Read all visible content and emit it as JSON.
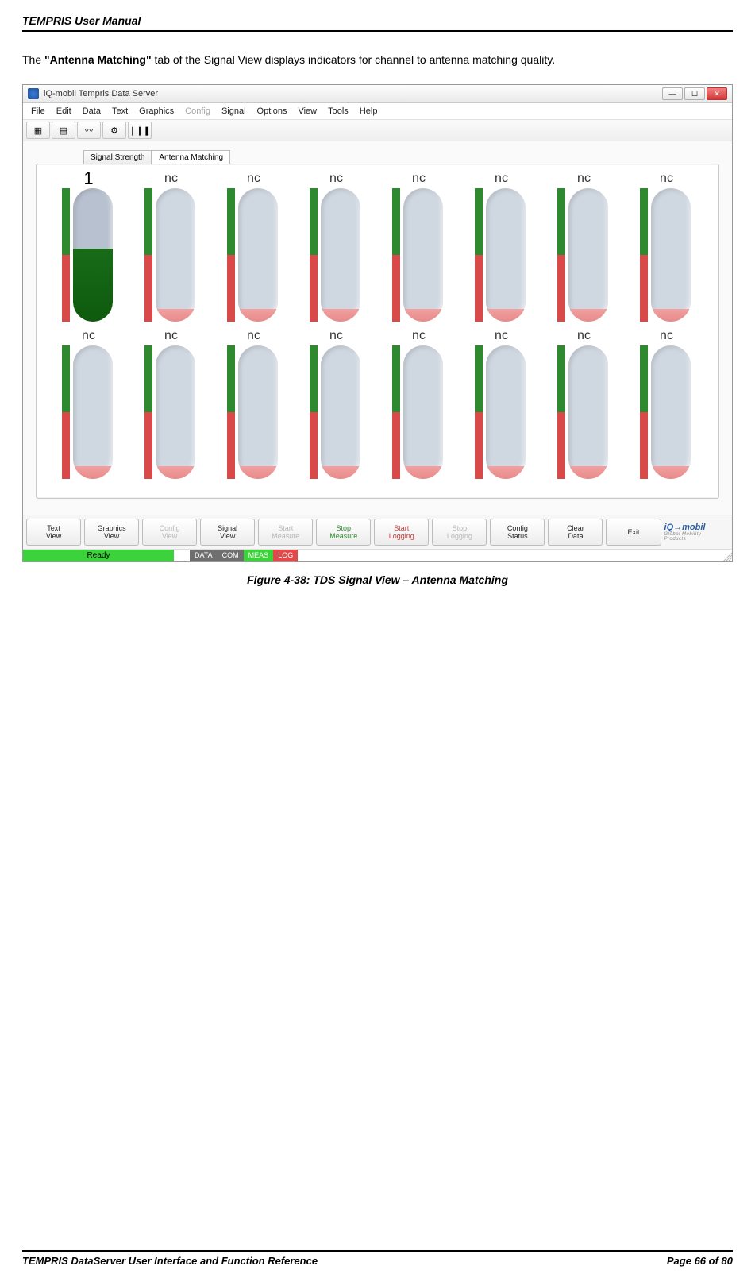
{
  "doc": {
    "header": "TEMPRIS User Manual",
    "footer_left": "TEMPRIS DataServer User Interface and Function Reference",
    "footer_right": "Page 66 of 80",
    "paragraph_pre": "The ",
    "paragraph_tab": "\"Antenna Matching\"",
    "paragraph_post": " tab of the Signal View displays indicators for channel to antenna matching quality.",
    "caption": "Figure 4-38: TDS Signal View – Antenna Matching"
  },
  "window": {
    "title": "iQ-mobil Tempris Data Server",
    "menus": [
      {
        "label": "File",
        "enabled": true
      },
      {
        "label": "Edit",
        "enabled": true
      },
      {
        "label": "Data",
        "enabled": true
      },
      {
        "label": "Text",
        "enabled": true
      },
      {
        "label": "Graphics",
        "enabled": true
      },
      {
        "label": "Config",
        "enabled": false
      },
      {
        "label": "Signal",
        "enabled": true
      },
      {
        "label": "Options",
        "enabled": true
      },
      {
        "label": "View",
        "enabled": true
      },
      {
        "label": "Tools",
        "enabled": true
      },
      {
        "label": "Help",
        "enabled": true
      }
    ],
    "toolbar_icons": [
      "▦",
      "▤",
      "〰",
      "⚙",
      "❘❙❚"
    ],
    "subtabs": [
      {
        "label": "Signal Strength",
        "active": false
      },
      {
        "label": "Antenna Matching",
        "active": true
      }
    ],
    "gauges": {
      "scale_colors_top_to_bottom": [
        "#2f8a2f",
        "#2f8a2f",
        "#2f8a2f",
        "#2f8a2f",
        "#2f8a2f",
        "#d84a4a",
        "#d84a4a",
        "#d84a4a",
        "#d84a4a",
        "#d84a4a"
      ],
      "tube_bg_active": "#b8c1cf",
      "tube_bg_inactive": "#cfd7e1",
      "channels": [
        {
          "label": "1",
          "is_ch1": true,
          "fill_pct": 55,
          "active": true
        },
        {
          "label": "nc",
          "is_ch1": false,
          "fill_pct": 10,
          "active": false
        },
        {
          "label": "nc",
          "is_ch1": false,
          "fill_pct": 10,
          "active": false
        },
        {
          "label": "nc",
          "is_ch1": false,
          "fill_pct": 10,
          "active": false
        },
        {
          "label": "nc",
          "is_ch1": false,
          "fill_pct": 10,
          "active": false
        },
        {
          "label": "nc",
          "is_ch1": false,
          "fill_pct": 10,
          "active": false
        },
        {
          "label": "nc",
          "is_ch1": false,
          "fill_pct": 10,
          "active": false
        },
        {
          "label": "nc",
          "is_ch1": false,
          "fill_pct": 10,
          "active": false
        },
        {
          "label": "nc",
          "is_ch1": false,
          "fill_pct": 10,
          "active": false
        },
        {
          "label": "nc",
          "is_ch1": false,
          "fill_pct": 10,
          "active": false
        },
        {
          "label": "nc",
          "is_ch1": false,
          "fill_pct": 10,
          "active": false
        },
        {
          "label": "nc",
          "is_ch1": false,
          "fill_pct": 10,
          "active": false
        },
        {
          "label": "nc",
          "is_ch1": false,
          "fill_pct": 10,
          "active": false
        },
        {
          "label": "nc",
          "is_ch1": false,
          "fill_pct": 10,
          "active": false
        },
        {
          "label": "nc",
          "is_ch1": false,
          "fill_pct": 10,
          "active": false
        },
        {
          "label": "nc",
          "is_ch1": false,
          "fill_pct": 10,
          "active": false
        }
      ]
    },
    "bottom_buttons": [
      {
        "label": "Text\nView",
        "state": "normal"
      },
      {
        "label": "Graphics\nView",
        "state": "normal"
      },
      {
        "label": "Config\nView",
        "state": "disabled"
      },
      {
        "label": "Signal\nView",
        "state": "normal"
      },
      {
        "label": "Start\nMeasure",
        "state": "disabled"
      },
      {
        "label": "Stop\nMeasure",
        "state": "green"
      },
      {
        "label": "Start\nLogging",
        "state": "red"
      },
      {
        "label": "Stop\nLogging",
        "state": "disabled"
      },
      {
        "label": "Config\nStatus",
        "state": "normal"
      },
      {
        "label": "Clear\nData",
        "state": "normal"
      },
      {
        "label": "Exit",
        "state": "normal"
      }
    ],
    "logo": {
      "main": "iQ→mobil",
      "sub": "Global Mobility Products"
    },
    "status": {
      "ready": "Ready",
      "chips": [
        {
          "label": "DATA",
          "bg": "#6f6f6f"
        },
        {
          "label": "COM",
          "bg": "#6f6f6f"
        },
        {
          "label": "MEAS",
          "bg": "#3bd23b"
        },
        {
          "label": "LOG",
          "bg": "#e04a4a"
        }
      ]
    }
  }
}
